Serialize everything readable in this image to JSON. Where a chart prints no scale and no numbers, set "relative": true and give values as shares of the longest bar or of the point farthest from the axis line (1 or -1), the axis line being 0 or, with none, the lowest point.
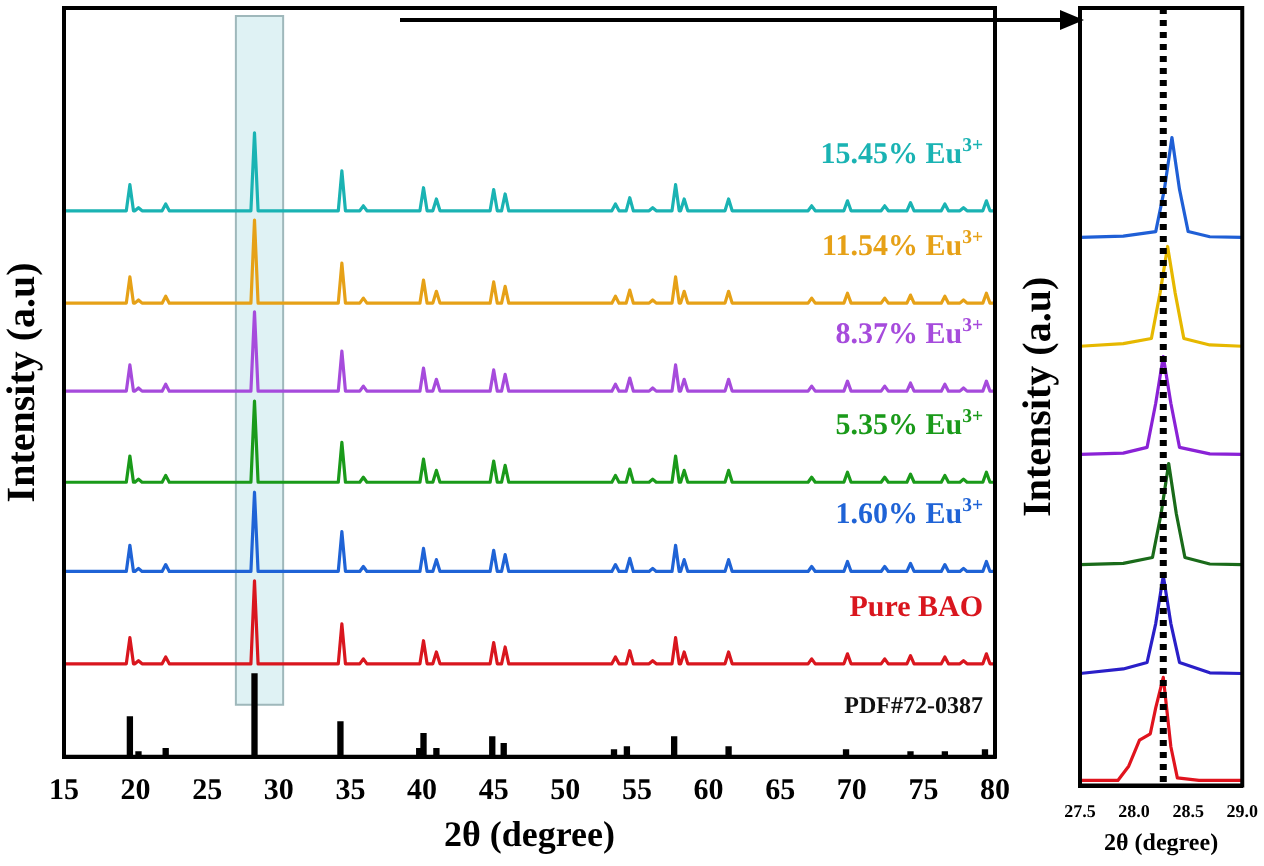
{
  "chart_data": [
    {
      "type": "line",
      "relative": true,
      "xlabel": "2θ (degree)",
      "ylabel": "Intensity (a.u)",
      "xlim": [
        15,
        80
      ],
      "xticks": [
        15,
        20,
        25,
        30,
        35,
        40,
        45,
        50,
        55,
        60,
        65,
        70,
        75,
        80
      ],
      "x": [
        15,
        19.35,
        19.6,
        19.85,
        19.95,
        20.2,
        20.45,
        21.85,
        22.1,
        22.35,
        28.05,
        28.3,
        28.55,
        34.15,
        34.4,
        34.65,
        35.65,
        35.9,
        36.15,
        39.85,
        40.1,
        40.35,
        40.75,
        41.0,
        41.25,
        44.75,
        45.0,
        45.25,
        45.55,
        45.8,
        46.05,
        53.25,
        53.5,
        53.75,
        54.25,
        54.5,
        54.75,
        55.85,
        56.1,
        56.35,
        57.45,
        57.7,
        57.95,
        58.05,
        58.3,
        58.55,
        61.15,
        61.4,
        61.65,
        66.95,
        67.2,
        67.45,
        69.45,
        69.7,
        69.95,
        72.05,
        72.3,
        72.55,
        73.85,
        74.1,
        74.35,
        76.25,
        76.5,
        76.75,
        77.55,
        77.8,
        78.05,
        79.15,
        79.4,
        79.65,
        80
      ],
      "bands": [
        {
          "axis": "x",
          "from": 27,
          "to": 30.3,
          "color": "#dff2f4"
        }
      ],
      "series": [
        {
          "name": "15.45% Eu$^{3+}$",
          "color": "#1ab3b3",
          "values": [
            0.875,
            0.875,
            0.917,
            0.875,
            0.875,
            0.88,
            0.875,
            0.875,
            0.886,
            0.875,
            0.875,
            1.0,
            0.875,
            0.875,
            0.939,
            0.875,
            0.875,
            0.883,
            0.875,
            0.875,
            0.912,
            0.875,
            0.875,
            0.894,
            0.875,
            0.875,
            0.909,
            0.875,
            0.875,
            0.902,
            0.875,
            0.875,
            0.886,
            0.875,
            0.875,
            0.896,
            0.875,
            0.875,
            0.88,
            0.875,
            0.875,
            0.917,
            0.875,
            0.875,
            0.894,
            0.875,
            0.875,
            0.894,
            0.875,
            0.875,
            0.883,
            0.875,
            0.875,
            0.891,
            0.875,
            0.875,
            0.883,
            0.875,
            0.875,
            0.888,
            0.875,
            0.875,
            0.886,
            0.875,
            0.875,
            0.88,
            0.875,
            0.875,
            0.891,
            0.875,
            0.875
          ]
        },
        {
          "name": "11.54% Eu$^{3+}$",
          "color": "#e6a117",
          "values": [
            0.727,
            0.727,
            0.769,
            0.727,
            0.727,
            0.732,
            0.727,
            0.727,
            0.738,
            0.727,
            0.727,
            0.86,
            0.727,
            0.727,
            0.791,
            0.727,
            0.727,
            0.735,
            0.727,
            0.727,
            0.764,
            0.727,
            0.727,
            0.746,
            0.727,
            0.727,
            0.761,
            0.727,
            0.727,
            0.754,
            0.727,
            0.727,
            0.738,
            0.727,
            0.727,
            0.748,
            0.727,
            0.727,
            0.732,
            0.727,
            0.727,
            0.769,
            0.727,
            0.727,
            0.746,
            0.727,
            0.727,
            0.746,
            0.727,
            0.727,
            0.735,
            0.727,
            0.727,
            0.743,
            0.727,
            0.727,
            0.735,
            0.727,
            0.727,
            0.74,
            0.727,
            0.727,
            0.738,
            0.727,
            0.727,
            0.732,
            0.727,
            0.727,
            0.743,
            0.727,
            0.727
          ]
        },
        {
          "name": "8.37% Eu$^{3+}$",
          "color": "#a64bdc",
          "values": [
            0.586,
            0.586,
            0.628,
            0.586,
            0.586,
            0.591,
            0.586,
            0.586,
            0.597,
            0.586,
            0.586,
            0.713,
            0.586,
            0.586,
            0.65,
            0.586,
            0.586,
            0.594,
            0.586,
            0.586,
            0.623,
            0.586,
            0.586,
            0.605,
            0.586,
            0.586,
            0.62,
            0.586,
            0.586,
            0.613,
            0.586,
            0.586,
            0.597,
            0.586,
            0.586,
            0.607,
            0.586,
            0.586,
            0.591,
            0.586,
            0.586,
            0.628,
            0.586,
            0.586,
            0.605,
            0.586,
            0.586,
            0.605,
            0.586,
            0.586,
            0.594,
            0.586,
            0.586,
            0.602,
            0.586,
            0.586,
            0.594,
            0.586,
            0.586,
            0.599,
            0.586,
            0.586,
            0.597,
            0.586,
            0.586,
            0.591,
            0.586,
            0.586,
            0.602,
            0.586,
            0.586
          ]
        },
        {
          "name": "5.35% Eu$^{3+}$",
          "color": "#1a9a1a",
          "values": [
            0.44,
            0.44,
            0.482,
            0.44,
            0.44,
            0.445,
            0.44,
            0.44,
            0.451,
            0.44,
            0.44,
            0.57,
            0.44,
            0.44,
            0.504,
            0.44,
            0.44,
            0.448,
            0.44,
            0.44,
            0.477,
            0.44,
            0.44,
            0.459,
            0.44,
            0.44,
            0.474,
            0.44,
            0.44,
            0.467,
            0.44,
            0.44,
            0.451,
            0.44,
            0.44,
            0.461,
            0.44,
            0.44,
            0.445,
            0.44,
            0.44,
            0.482,
            0.44,
            0.44,
            0.459,
            0.44,
            0.44,
            0.459,
            0.44,
            0.44,
            0.448,
            0.44,
            0.44,
            0.456,
            0.44,
            0.44,
            0.448,
            0.44,
            0.44,
            0.453,
            0.44,
            0.44,
            0.451,
            0.44,
            0.44,
            0.445,
            0.44,
            0.44,
            0.456,
            0.44,
            0.44
          ]
        },
        {
          "name": "1.60% Eu$^{3+}$",
          "color": "#1f63d6",
          "values": [
            0.297,
            0.297,
            0.339,
            0.297,
            0.297,
            0.302,
            0.297,
            0.297,
            0.308,
            0.297,
            0.297,
            0.424,
            0.297,
            0.297,
            0.361,
            0.297,
            0.297,
            0.305,
            0.297,
            0.297,
            0.334,
            0.297,
            0.297,
            0.316,
            0.297,
            0.297,
            0.331,
            0.297,
            0.297,
            0.324,
            0.297,
            0.297,
            0.308,
            0.297,
            0.297,
            0.318,
            0.297,
            0.297,
            0.302,
            0.297,
            0.297,
            0.339,
            0.297,
            0.297,
            0.316,
            0.297,
            0.297,
            0.316,
            0.297,
            0.297,
            0.305,
            0.297,
            0.297,
            0.313,
            0.297,
            0.297,
            0.305,
            0.297,
            0.297,
            0.31,
            0.297,
            0.297,
            0.308,
            0.297,
            0.297,
            0.302,
            0.297,
            0.297,
            0.313,
            0.297,
            0.297
          ]
        },
        {
          "name": "Pure BAO",
          "color": "#d9161e",
          "values": [
            0.149,
            0.149,
            0.191,
            0.149,
            0.149,
            0.154,
            0.149,
            0.149,
            0.16,
            0.149,
            0.149,
            0.282,
            0.149,
            0.149,
            0.213,
            0.149,
            0.149,
            0.157,
            0.149,
            0.149,
            0.186,
            0.149,
            0.149,
            0.168,
            0.149,
            0.149,
            0.183,
            0.149,
            0.149,
            0.176,
            0.149,
            0.149,
            0.16,
            0.149,
            0.149,
            0.17,
            0.149,
            0.149,
            0.154,
            0.149,
            0.149,
            0.191,
            0.149,
            0.149,
            0.168,
            0.149,
            0.149,
            0.168,
            0.149,
            0.149,
            0.157,
            0.149,
            0.149,
            0.165,
            0.149,
            0.149,
            0.157,
            0.149,
            0.149,
            0.162,
            0.149,
            0.149,
            0.16,
            0.149,
            0.149,
            0.154,
            0.149,
            0.149,
            0.165,
            0.149,
            0.149
          ]
        },
        {
          "name": "PDF#72-0387",
          "type": "bar",
          "color": "#000000",
          "x": [
            19.6,
            20.2,
            22.1,
            28.3,
            34.3,
            39.8,
            40.1,
            41.0,
            44.9,
            45.7,
            53.4,
            54.3,
            57.6,
            61.4,
            69.6,
            74.1,
            76.5,
            79.3
          ],
          "values": [
            0.064,
            0.008,
            0.013,
            0.133,
            0.056,
            0.013,
            0.037,
            0.013,
            0.032,
            0.021,
            0.011,
            0.016,
            0.032,
            0.016,
            0.011,
            0.008,
            0.008,
            0.011
          ]
        }
      ]
    },
    {
      "type": "line",
      "relative": true,
      "xlabel": "2θ (degree)",
      "ylabel": "Intensity (a.u)",
      "xlim": [
        27.5,
        29.0
      ],
      "xticks": [
        27.5,
        {
          "value": 28,
          "label": "28.0"
        },
        28.5,
        {
          "value": 29,
          "label": "29.0"
        }
      ],
      "ref_lines": [
        {
          "axis": "x",
          "value": 28.27,
          "color": "#000000",
          "line_style": "dotted"
        }
      ],
      "series": [
        {
          "color": "#1f5fd6",
          "x": [
            27.5,
            27.9,
            28.2,
            28.28,
            28.35,
            28.42,
            28.5,
            28.7,
            29.0
          ],
          "values": [
            0.846,
            0.848,
            0.855,
            0.92,
            1.0,
            0.92,
            0.855,
            0.847,
            0.846
          ]
        },
        {
          "color": "#e6b800",
          "x": [
            27.5,
            27.9,
            28.16,
            28.24,
            28.31,
            28.38,
            28.46,
            28.7,
            29.0
          ],
          "values": [
            0.678,
            0.682,
            0.69,
            0.76,
            0.832,
            0.76,
            0.69,
            0.68,
            0.678
          ]
        },
        {
          "color": "#8a22d6",
          "x": [
            27.5,
            27.9,
            28.12,
            28.2,
            28.27,
            28.34,
            28.42,
            28.7,
            29.0
          ],
          "values": [
            0.511,
            0.513,
            0.522,
            0.59,
            0.662,
            0.59,
            0.522,
            0.512,
            0.511
          ]
        },
        {
          "color": "#1a6b1a",
          "x": [
            27.5,
            27.9,
            28.17,
            28.25,
            28.32,
            28.39,
            28.47,
            28.7,
            29.0
          ],
          "values": [
            0.341,
            0.343,
            0.352,
            0.42,
            0.497,
            0.42,
            0.352,
            0.342,
            0.341
          ]
        },
        {
          "color": "#2a1fc8",
          "x": [
            27.5,
            27.9,
            28.12,
            28.2,
            28.27,
            28.34,
            28.42,
            28.7,
            29.0
          ],
          "values": [
            0.173,
            0.18,
            0.19,
            0.25,
            0.324,
            0.25,
            0.19,
            0.174,
            0.173
          ]
        },
        {
          "color": "#e0141e",
          "x": [
            27.5,
            27.85,
            27.95,
            28.05,
            28.15,
            28.2,
            28.27,
            28.34,
            28.4,
            28.6,
            29.0
          ],
          "values": [
            0.008,
            0.008,
            0.03,
            0.07,
            0.08,
            0.12,
            0.167,
            0.06,
            0.012,
            0.008,
            0.008
          ]
        }
      ]
    }
  ]
}
